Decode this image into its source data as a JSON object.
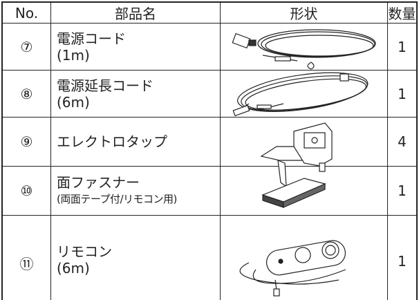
{
  "table": {
    "header": [
      "No.",
      "部品名",
      "形状",
      "数量"
    ],
    "rows": [
      {
        "no": "⑦",
        "name": [
          "電源コード",
          "(1m)"
        ],
        "qty": "1"
      },
      {
        "no": "⑧",
        "name": [
          "電源延長コード",
          "(6m)"
        ],
        "qty": "1"
      },
      {
        "no": "⑨",
        "name": [
          "エレクトロタップ"
        ],
        "qty": "4"
      },
      {
        "no": "⑩",
        "name": [
          "面ファスナー",
          "(両面テープ付/リモコン用)"
        ],
        "qty": "1"
      },
      {
        "no": "⑪",
        "name": [
          "リモコン",
          "(6m)"
        ],
        "qty": "1"
      }
    ]
  }
}
